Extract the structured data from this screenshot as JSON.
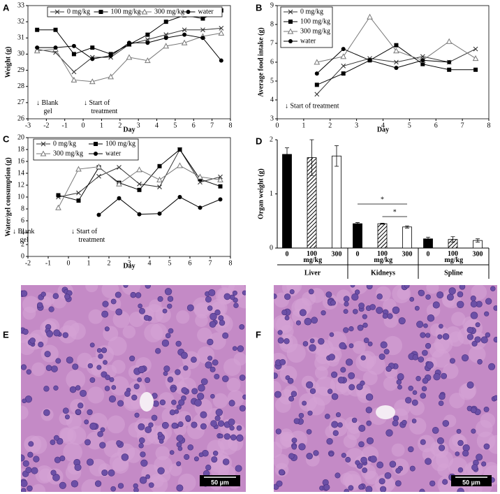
{
  "chart_data": [
    {
      "panel": "A",
      "type": "line",
      "x_label": "Day",
      "y_label": "Weight (g)",
      "x": [
        -2.5,
        -1.5,
        -0.5,
        0.5,
        1.5,
        2.5,
        3.5,
        4.5,
        5.5,
        6.5,
        7.5
      ],
      "xlim": [
        -3,
        8
      ],
      "xticks": [
        -3,
        -2,
        -1,
        0,
        1,
        2,
        3,
        4,
        5,
        6,
        7,
        8
      ],
      "ylim": [
        26,
        33
      ],
      "yticks": [
        26,
        27,
        28,
        29,
        30,
        31,
        32,
        33
      ],
      "legend": "top",
      "legend_columns": 4,
      "annotations": [
        "↓ Blank gel",
        "↓ Start of treatment"
      ],
      "series": [
        {
          "name": "0 mg/kg",
          "color": "#333333",
          "marker": "x",
          "values": [
            30.3,
            30.1,
            28.9,
            29.8,
            29.8,
            30.6,
            30.9,
            31.2,
            31.5,
            31.5,
            31.6
          ]
        },
        {
          "name": "100 mg/kg",
          "color": "#000000",
          "marker": "square",
          "values": [
            31.5,
            31.5,
            30.0,
            30.4,
            30.0,
            30.6,
            31.2,
            32.0,
            32.4,
            32.2,
            32.7
          ]
        },
        {
          "name": "300 mg/kg",
          "color": "#777777",
          "marker": "triangle",
          "values": [
            30.2,
            30.3,
            28.4,
            28.3,
            28.6,
            29.8,
            29.6,
            30.5,
            30.7,
            31.1,
            31.3
          ]
        },
        {
          "name": "water",
          "color": "#000000",
          "marker": "circle",
          "values": [
            30.4,
            30.4,
            30.5,
            29.7,
            29.9,
            30.7,
            30.7,
            31.0,
            31.2,
            31.0,
            29.6
          ]
        }
      ]
    },
    {
      "panel": "B",
      "type": "line",
      "x_label": "Day",
      "y_label": "Average food intake (g)",
      "x": [
        1.5,
        2.5,
        3.5,
        4.5,
        5.5,
        6.5,
        7.5
      ],
      "xlim": [
        0,
        8
      ],
      "xticks": [
        0,
        1,
        2,
        3,
        4,
        5,
        6,
        7,
        8
      ],
      "ylim": [
        3,
        9
      ],
      "yticks": [
        3,
        4,
        5,
        6,
        7,
        8,
        9
      ],
      "legend": "upper left",
      "legend_columns": 1,
      "annotations": [
        "↓ Start of treatment"
      ],
      "series": [
        {
          "name": "0 mg/kg",
          "color": "#333333",
          "marker": "x",
          "values": [
            4.3,
            5.8,
            6.2,
            6.0,
            6.3,
            6.0,
            6.7
          ]
        },
        {
          "name": "100 mg/kg",
          "color": "#000000",
          "marker": "square",
          "values": [
            4.8,
            5.4,
            6.1,
            6.9,
            5.9,
            5.6,
            5.6
          ]
        },
        {
          "name": "300 mg/kg",
          "color": "#777777",
          "marker": "triangle",
          "values": [
            6.0,
            6.3,
            8.4,
            6.6,
            6.1,
            7.1,
            6.2
          ]
        },
        {
          "name": "water",
          "color": "#000000",
          "marker": "circle",
          "values": [
            5.4,
            6.7,
            6.1,
            5.7,
            6.1,
            6.0,
            null
          ]
        }
      ]
    },
    {
      "panel": "C",
      "type": "line",
      "x_label": "Day",
      "y_label": "Water/gel consumption (g)",
      "x": [
        -0.5,
        0.5,
        1.5,
        2.5,
        3.5,
        4.5,
        5.5,
        6.5,
        7.5
      ],
      "xlim": [
        -2,
        8
      ],
      "xticks": [
        -2,
        -1,
        0,
        1,
        2,
        3,
        4,
        5,
        6,
        7,
        8
      ],
      "ylim": [
        0,
        20
      ],
      "yticks": [
        0,
        2,
        4,
        6,
        8,
        10,
        12,
        14,
        16,
        18,
        20
      ],
      "legend": "upper left",
      "legend_columns": 2,
      "annotations": [
        "↓ Blank gel",
        "↓ Start of treatment"
      ],
      "series": [
        {
          "name": "0 mg/kg",
          "color": "#333333",
          "marker": "x",
          "values": [
            10.0,
            10.7,
            13.5,
            15.0,
            12.2,
            11.7,
            18.0,
            12.5,
            13.4
          ]
        },
        {
          "name": "100 mg/kg",
          "color": "#000000",
          "marker": "square",
          "values": [
            10.3,
            9.4,
            15.0,
            12.4,
            11.2,
            15.2,
            18.0,
            13.0,
            11.8
          ]
        },
        {
          "name": "300 mg/kg",
          "color": "#777777",
          "marker": "triangle",
          "values": [
            8.2,
            14.7,
            15.1,
            12.2,
            14.6,
            12.9,
            15.3,
            13.4,
            12.9
          ]
        },
        {
          "name": "water",
          "color": "#000000",
          "marker": "circle",
          "values": [
            null,
            null,
            7.0,
            9.8,
            7.1,
            7.2,
            10.0,
            8.2,
            9.6
          ]
        }
      ]
    },
    {
      "panel": "D",
      "type": "bar",
      "y_label": "Organ weight (g)",
      "groups": [
        "Liver",
        "Kidneys",
        "Spline"
      ],
      "ylim": [
        0,
        2
      ],
      "yticks": [
        0,
        1,
        2
      ],
      "significance": [
        "*",
        "*"
      ],
      "series": [
        {
          "name": "0",
          "color": "#000000",
          "values": [
            1.73,
            0.45,
            0.17
          ],
          "errors": [
            0.12,
            0.02,
            0.03
          ]
        },
        {
          "name": "100 mg/kg",
          "color": "#000000",
          "hatch": true,
          "values": [
            1.67,
            0.45,
            0.16
          ],
          "errors": [
            0.33,
            0.01,
            0.05
          ]
        },
        {
          "name": "300",
          "color": "#ffffff",
          "values": [
            1.7,
            0.39,
            0.14
          ],
          "errors": [
            0.19,
            0.02,
            0.03
          ]
        }
      ]
    }
  ],
  "images": [
    {
      "label": "E",
      "scale_bar": "50 µm"
    },
    {
      "label": "F",
      "scale_bar": "50 µm"
    }
  ]
}
